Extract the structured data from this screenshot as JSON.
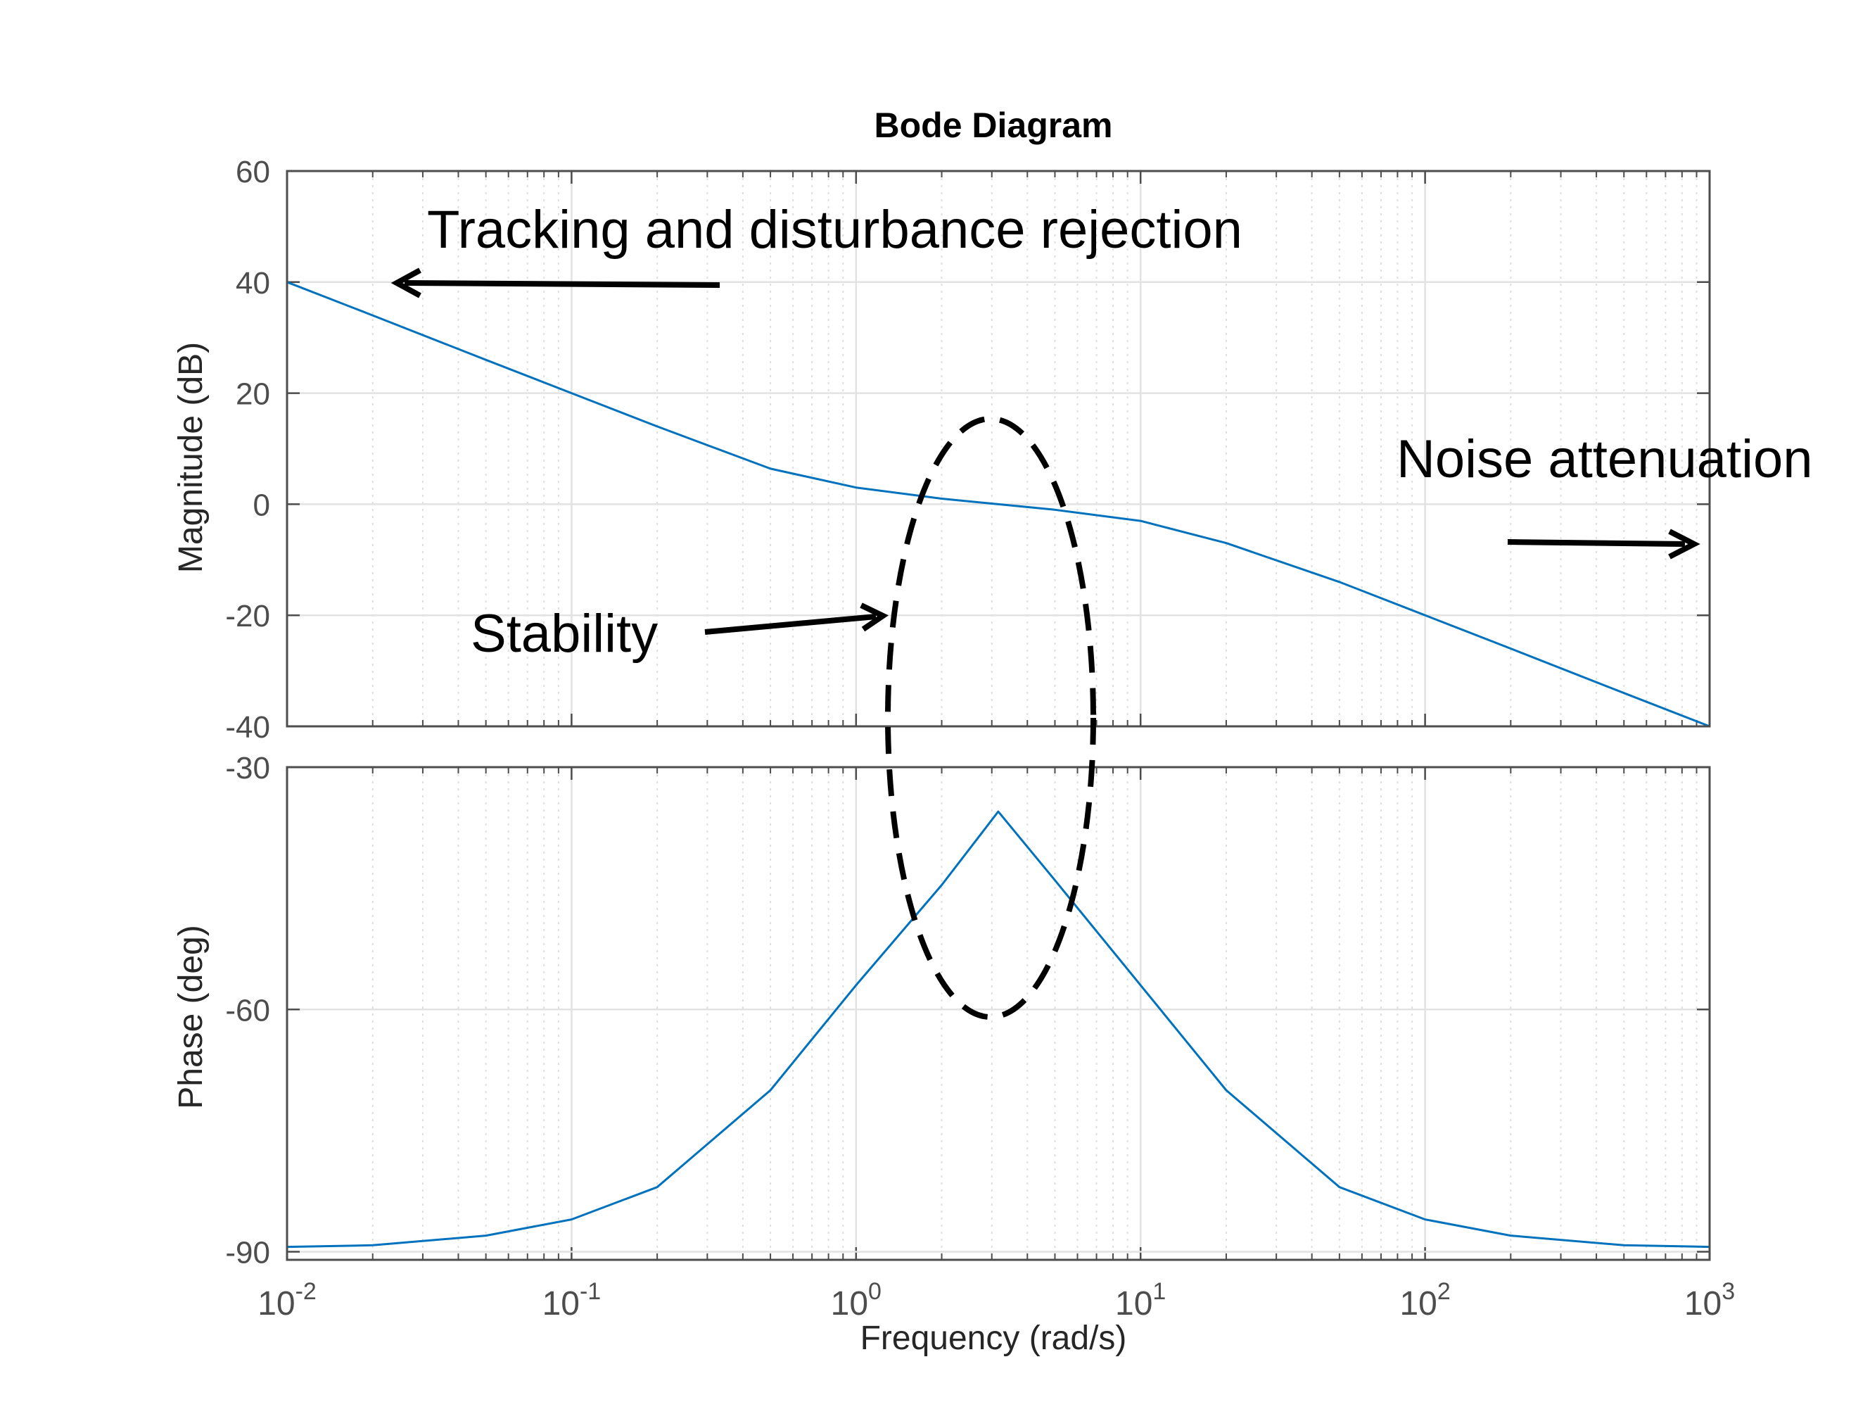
{
  "chart_data": {
    "type": "line",
    "title": "Bode Diagram",
    "xlabel": "Frequency  (rad/s)",
    "xscale": "log",
    "xlim": [
      0.01,
      1000
    ],
    "x_ticks": [
      {
        "base": "10",
        "exp": "-2",
        "value": 0.01
      },
      {
        "base": "10",
        "exp": "-1",
        "value": 0.1
      },
      {
        "base": "10",
        "exp": "0",
        "value": 1
      },
      {
        "base": "10",
        "exp": "1",
        "value": 10
      },
      {
        "base": "10",
        "exp": "2",
        "value": 100
      },
      {
        "base": "10",
        "exp": "3",
        "value": 1000
      }
    ],
    "grid": true,
    "panels": [
      {
        "name": "magnitude",
        "ylabel": "Magnitude (dB)",
        "ylim": [
          -40,
          60
        ],
        "yticks": [
          "60",
          "40",
          "20",
          "0",
          "-20",
          "-40"
        ],
        "series_color": "#0072BD",
        "x": [
          0.01,
          0.02,
          0.05,
          0.1,
          0.2,
          0.5,
          1,
          2,
          3.16,
          5,
          10,
          20,
          50,
          100,
          200,
          500,
          1000
        ],
        "y": [
          40,
          34,
          26,
          20,
          14,
          6.4,
          3,
          1,
          0,
          -1,
          -3,
          -7,
          -14,
          -20,
          -26,
          -34,
          -40
        ]
      },
      {
        "name": "phase",
        "ylabel": "Phase (deg)",
        "ylim": [
          -91,
          -30
        ],
        "yticks": [
          "-30",
          "-60",
          "-90"
        ],
        "series_color": "#0072BD",
        "x": [
          0.01,
          0.02,
          0.05,
          0.1,
          0.2,
          0.5,
          1,
          2,
          3.16,
          5,
          10,
          20,
          50,
          100,
          200,
          500,
          1000
        ],
        "y": [
          -89.4,
          -89.2,
          -88.0,
          -86.0,
          -82.0,
          -70.0,
          -57.0,
          -44.6,
          -35.5,
          -44.0,
          -57.0,
          -70.0,
          -82.0,
          -86.0,
          -88.0,
          -89.2,
          -89.4
        ]
      }
    ],
    "annotations": [
      {
        "name": "tracking",
        "text": "Tracking and disturbance rejection"
      },
      {
        "name": "noise",
        "text": "Noise attenuation"
      },
      {
        "name": "stability",
        "text": "Stability"
      }
    ]
  }
}
